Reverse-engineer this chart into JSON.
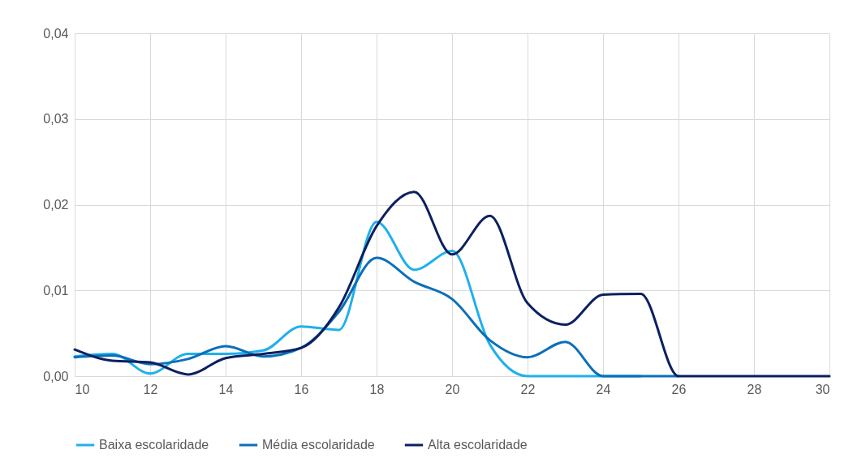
{
  "chart_data": {
    "type": "line",
    "x": [
      10,
      11,
      12,
      13,
      14,
      15,
      16,
      17,
      18,
      19,
      20,
      21,
      22,
      23,
      24,
      25,
      26,
      27,
      28,
      29,
      30
    ],
    "series": [
      {
        "name": "Baixa escolaridade",
        "color": "#1fb0ec",
        "values": [
          0.0023,
          0.0026,
          0.0003,
          0.0026,
          0.0026,
          0.003,
          0.0058,
          0.0054,
          0.018,
          0.0124,
          0.0146,
          0.0037,
          0,
          0,
          0,
          0,
          null,
          null,
          null,
          null,
          null
        ]
      },
      {
        "name": "Média escolaridade",
        "color": "#0a6fba",
        "values": [
          0.0022,
          0.0024,
          0.0014,
          0.002,
          0.0035,
          0.0023,
          0.0033,
          0.0075,
          0.0138,
          0.011,
          0.009,
          0.0042,
          0.0022,
          0.004,
          0,
          0,
          0,
          null,
          null,
          null,
          null
        ]
      },
      {
        "name": "Alta escolaridade",
        "color": "#0b2060",
        "values": [
          0.0031,
          0.0018,
          0.0016,
          0.0002,
          0.0021,
          0.0026,
          0.0033,
          0.008,
          0.0175,
          0.0215,
          0.0142,
          0.0187,
          0.0085,
          0.006,
          0.0095,
          0.0096,
          0,
          0,
          0,
          0,
          0
        ]
      }
    ],
    "xlim": [
      10,
      30
    ],
    "xticks": [
      10,
      12,
      14,
      16,
      18,
      20,
      22,
      24,
      26,
      28,
      30
    ],
    "ylim": [
      0,
      0.04
    ],
    "yticks": [
      {
        "value": 0,
        "label": "0,00"
      },
      {
        "value": 0.01,
        "label": "0,01"
      },
      {
        "value": 0.02,
        "label": "0,02"
      },
      {
        "value": 0.03,
        "label": "0,03"
      },
      {
        "value": 0.04,
        "label": "0,04"
      }
    ],
    "grid": true,
    "legend": "bottom",
    "marker": "none",
    "line_style": "solid"
  }
}
